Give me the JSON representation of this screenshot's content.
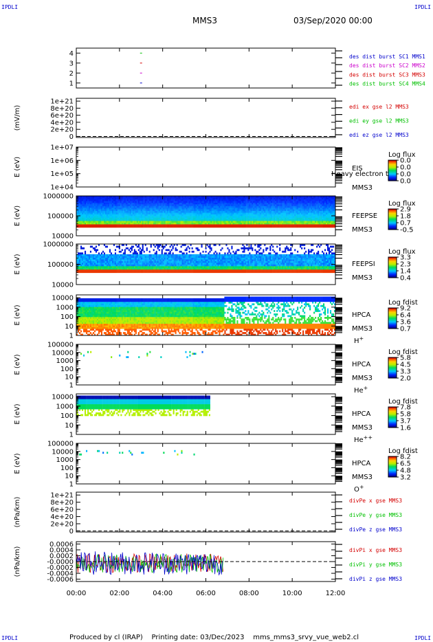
{
  "header": {
    "corner_left_top": "IPDLI",
    "corner_right_top": "IPDLI",
    "corner_left_bottom": "IPDLI",
    "corner_right_bottom": "IPDLI",
    "spacecraft": "MMS3",
    "date": "03/Sep/2020 00:00"
  },
  "footer": {
    "text": "Produced by cl (IRAP)    Printing date: 03/Dec/2023    mms_mms3_srvy_vue_web2.cl"
  },
  "colors": {
    "red": "#d40000",
    "green": "#00c000",
    "blue": "#0000cc",
    "magenta": "#cc00cc",
    "darkred": "#a00000"
  },
  "chart_data": [
    {
      "id": "burst",
      "type": "scatter",
      "ylim": [
        0.5,
        4.5
      ],
      "yticks": [
        "1",
        "2",
        "3",
        "4"
      ],
      "ytick_values": [
        1,
        2,
        3,
        4
      ],
      "points": [
        {
          "x": 3.0,
          "y": 4,
          "color": "green"
        },
        {
          "x": 3.0,
          "y": 3,
          "color": "red"
        },
        {
          "x": 3.0,
          "y": 2,
          "color": "magenta"
        },
        {
          "x": 3.0,
          "y": 1,
          "color": "blue"
        }
      ],
      "legend": [
        {
          "text": "des dist burst SC1 MMS1",
          "color": "blue"
        },
        {
          "text": "des dist burst SC2 MMS2",
          "color": "magenta"
        },
        {
          "text": "des dist burst SC3 MMS3",
          "color": "red"
        },
        {
          "text": "des dist burst SC4 MMS4",
          "color": "green"
        }
      ]
    },
    {
      "id": "edi",
      "type": "line",
      "ylabel": "(mV/m)",
      "yticks": [
        "1e+21",
        "8e+20",
        "6e+20",
        "4e+20",
        "2e+20",
        "0"
      ],
      "ytick_values": [
        1e+21,
        8e+20,
        6e+20,
        4e+20,
        2e+20,
        0
      ],
      "ylim": [
        -3e+19,
        1.08e+21
      ],
      "zero_line": true,
      "legend": [
        {
          "text": "edi ex gse l2 MMS3",
          "color": "red"
        },
        {
          "text": "edi ey gse l2 MMS3",
          "color": "green"
        },
        {
          "text": "edi ez gse l2 MMS3",
          "color": "blue"
        }
      ]
    },
    {
      "id": "eis",
      "type": "heatmap",
      "ylabel": "E (eV)",
      "log": true,
      "yticks": [
        "1e+07",
        "1e+06",
        "1e+05",
        "1e+04"
      ],
      "ytick_values": [
        7,
        6,
        5,
        4
      ],
      "ylim": [
        4,
        7
      ],
      "labels": [
        "EIS",
        "MMS3"
      ],
      "overlay_text": "Heavy electron to",
      "colorbar": {
        "title": "Log flux",
        "ticks": [
          "0.0",
          "0.0",
          "0.0",
          "0.0"
        ]
      }
    },
    {
      "id": "feepse",
      "type": "heatmap",
      "ylabel": "E (eV)",
      "log": true,
      "yticks": [
        "1000000",
        "100000",
        "10000"
      ],
      "ytick_values": [
        6,
        5,
        4
      ],
      "ylim": [
        4,
        6
      ],
      "labels": [
        "FEEPSE",
        "MMS3"
      ],
      "colorbar": {
        "title": "Log flux",
        "ticks": [
          "2.9",
          "1.8",
          "0.7",
          "-0.5"
        ]
      },
      "coverage": [
        0,
        12
      ]
    },
    {
      "id": "feepsi",
      "type": "heatmap",
      "ylabel": "E (eV)",
      "log": true,
      "yticks": [
        "1000000",
        "100000",
        "10000"
      ],
      "ytick_values": [
        6,
        5,
        4
      ],
      "ylim": [
        4,
        6
      ],
      "labels": [
        "FEEPSI",
        "MMS3"
      ],
      "colorbar": {
        "title": "Log flux",
        "ticks": [
          "3.3",
          "2.3",
          "1.4",
          "0.4"
        ]
      },
      "coverage": [
        0,
        12
      ]
    },
    {
      "id": "hpca_h",
      "type": "heatmap",
      "ylabel": "E (eV)",
      "log": true,
      "yticks": [
        "10000",
        "1000",
        "100",
        "10",
        "1"
      ],
      "ytick_values": [
        4,
        3,
        2,
        1,
        0
      ],
      "ylim": [
        0,
        4.3
      ],
      "labels": [
        "HPCA",
        "MMS3",
        "H+"
      ],
      "colorbar": {
        "title": "Log fdist",
        "ticks": [
          "9.2",
          "6.4",
          "3.6",
          "0.7"
        ]
      },
      "coverage": [
        0,
        12
      ]
    },
    {
      "id": "hpca_he",
      "type": "heatmap",
      "ylabel": "E (eV)",
      "log": true,
      "yticks": [
        "100000",
        "10000",
        "1000",
        "100",
        "10",
        "1"
      ],
      "ytick_values": [
        5,
        4,
        3,
        2,
        1,
        0
      ],
      "ylim": [
        0,
        5
      ],
      "labels": [
        "HPCA",
        "MMS3",
        "He+"
      ],
      "colorbar": {
        "title": "Log fdist",
        "ticks": [
          "5.8",
          "4.5",
          "3.3",
          "2.0"
        ]
      },
      "coverage": [
        0,
        6
      ]
    },
    {
      "id": "hpca_hepp",
      "type": "heatmap",
      "ylabel": "E (eV)",
      "log": true,
      "yticks": [
        "10000",
        "1000",
        "100",
        "10",
        "1"
      ],
      "ytick_values": [
        4,
        3,
        2,
        1,
        0
      ],
      "ylim": [
        0,
        4.3
      ],
      "labels": [
        "HPCA",
        "MMS3",
        "He++"
      ],
      "colorbar": {
        "title": "Log fdist",
        "ticks": [
          "7.8",
          "5.8",
          "3.7",
          "1.6"
        ]
      },
      "coverage": [
        0,
        6.2
      ]
    },
    {
      "id": "hpca_o",
      "type": "heatmap",
      "ylabel": "E (eV)",
      "log": true,
      "yticks": [
        "100000",
        "10000",
        "1000",
        "100",
        "10",
        "1"
      ],
      "ytick_values": [
        5,
        4,
        3,
        2,
        1,
        0
      ],
      "ylim": [
        0,
        5
      ],
      "labels": [
        "HPCA",
        "MMS3",
        "O+"
      ],
      "colorbar": {
        "title": "Log fdist",
        "ticks": [
          "8.2",
          "6.5",
          "4.8",
          "3.2"
        ]
      },
      "coverage": [
        0,
        6
      ]
    },
    {
      "id": "divpe",
      "type": "line",
      "ylabel": "(nPa/km)",
      "yticks": [
        "1e+21",
        "8e+20",
        "6e+20",
        "4e+20",
        "2e+20",
        "0"
      ],
      "ytick_values": [
        1e+21,
        8e+20,
        6e+20,
        4e+20,
        2e+20,
        0
      ],
      "ylim": [
        -3e+19,
        1.08e+21
      ],
      "zero_line": true,
      "legend": [
        {
          "text": "divPe x gse MMS3",
          "color": "red"
        },
        {
          "text": "divPe y gse MMS3",
          "color": "green"
        },
        {
          "text": "divPe z gse MMS3",
          "color": "blue"
        }
      ]
    },
    {
      "id": "divpi",
      "type": "line",
      "ylabel": "(nPa/km)",
      "yticks": [
        "0.0006",
        "0.0004",
        "0.0002",
        "-0.0000",
        "-0.0002",
        "-0.0004",
        "-0.0006"
      ],
      "ytick_values": [
        0.0006,
        0.0004,
        0.0002,
        0,
        -0.0002,
        -0.0004,
        -0.0006
      ],
      "ylim": [
        -0.00068,
        0.00068
      ],
      "zero_line": true,
      "data_end_hour": 6.8,
      "legend": [
        {
          "text": "divPi x gse MMS3",
          "color": "red"
        },
        {
          "text": "divPi y gse MMS3",
          "color": "green"
        },
        {
          "text": "divPi z gse MMS3",
          "color": "blue"
        }
      ]
    }
  ],
  "x_axis": {
    "range_hours": [
      0,
      12
    ],
    "ticks": [
      "00:00",
      "02:00",
      "04:00",
      "06:00",
      "08:00",
      "10:00",
      "12:00"
    ],
    "tick_hours": [
      0,
      2,
      4,
      6,
      8,
      10,
      12
    ]
  }
}
